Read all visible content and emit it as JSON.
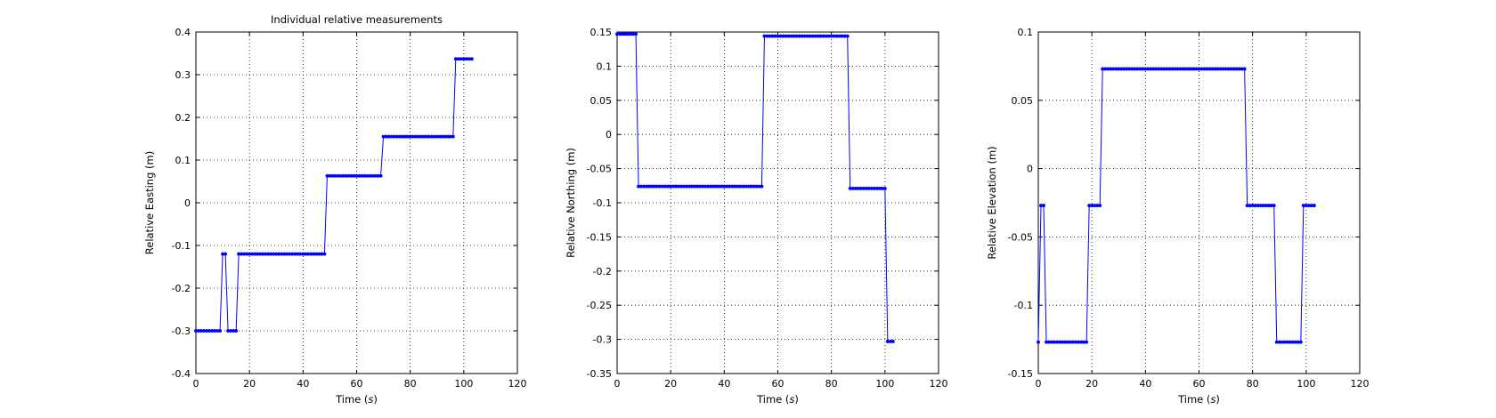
{
  "colors": {
    "series": "#0000ff",
    "axes": "#000000",
    "background": "#ffffff"
  },
  "chart_data": [
    {
      "type": "line",
      "title": "Individual relative measurements",
      "xlabel_prefix": "Time (",
      "xlabel_unit": "s",
      "xlabel_suffix": ")",
      "ylabel": "Relative Easting (m)",
      "xlim": [
        0,
        120
      ],
      "ylim": [
        -0.4,
        0.4
      ],
      "xticks": [
        0,
        20,
        40,
        60,
        80,
        100,
        120
      ],
      "yticks": [
        -0.4,
        -0.3,
        -0.2,
        -0.1,
        0,
        0.1,
        0.2,
        0.3,
        0.4
      ],
      "xtick_labels": [
        "0",
        "20",
        "40",
        "60",
        "80",
        "100",
        "120"
      ],
      "ytick_labels": [
        "-0.4",
        "-0.3",
        "-0.2",
        "-0.1",
        "0",
        "0.1",
        "0.2",
        "0.3",
        "0.4"
      ],
      "grid": true,
      "marker": "*",
      "segments": [
        [
          0,
          9,
          -0.3
        ],
        [
          10,
          11,
          -0.12
        ],
        [
          12,
          15,
          -0.3
        ],
        [
          16,
          48,
          -0.12
        ],
        [
          49,
          69,
          0.063
        ],
        [
          70,
          96,
          0.155
        ],
        [
          97,
          103,
          0.337
        ]
      ]
    },
    {
      "type": "line",
      "title": "",
      "xlabel_prefix": "Time (",
      "xlabel_unit": "s",
      "xlabel_suffix": ")",
      "ylabel": "Relative Northing (m)",
      "xlim": [
        0,
        120
      ],
      "ylim": [
        -0.35,
        0.15
      ],
      "xticks": [
        0,
        20,
        40,
        60,
        80,
        100,
        120
      ],
      "yticks": [
        -0.35,
        -0.3,
        -0.25,
        -0.2,
        -0.15,
        -0.1,
        -0.05,
        0,
        0.05,
        0.1,
        0.15
      ],
      "xtick_labels": [
        "0",
        "20",
        "40",
        "60",
        "80",
        "100",
        "120"
      ],
      "ytick_labels": [
        "-0.35",
        "-0.3",
        "-0.25",
        "-0.2",
        "-0.15",
        "-0.1",
        "-0.05",
        "0",
        "0.05",
        "0.1",
        "0.15"
      ],
      "grid": true,
      "marker": "*",
      "segments": [
        [
          0,
          7,
          0.147
        ],
        [
          8,
          54,
          -0.076
        ],
        [
          55,
          86,
          0.144
        ],
        [
          87,
          100,
          -0.079
        ],
        [
          101,
          103,
          -0.303
        ]
      ]
    },
    {
      "type": "line",
      "title": "",
      "xlabel_prefix": "Time (",
      "xlabel_unit": "s",
      "xlabel_suffix": ")",
      "ylabel": "Relative Elevation (m)",
      "xlim": [
        0,
        120
      ],
      "ylim": [
        -0.15,
        0.1
      ],
      "xticks": [
        0,
        20,
        40,
        60,
        80,
        100,
        120
      ],
      "yticks": [
        -0.15,
        -0.1,
        -0.05,
        0,
        0.05,
        0.1
      ],
      "xtick_labels": [
        "0",
        "20",
        "40",
        "60",
        "80",
        "100",
        "120"
      ],
      "ytick_labels": [
        "-0.15",
        "-0.1",
        "-0.05",
        "0",
        "0.05",
        "0.1"
      ],
      "grid": true,
      "marker": "*",
      "segments": [
        [
          0,
          0,
          -0.127
        ],
        [
          1,
          2,
          -0.027
        ],
        [
          3,
          18,
          -0.127
        ],
        [
          19,
          23,
          -0.027
        ],
        [
          24,
          77,
          0.073
        ],
        [
          78,
          88,
          -0.027
        ],
        [
          89,
          98,
          -0.127
        ],
        [
          99,
          103,
          -0.027
        ]
      ]
    }
  ]
}
